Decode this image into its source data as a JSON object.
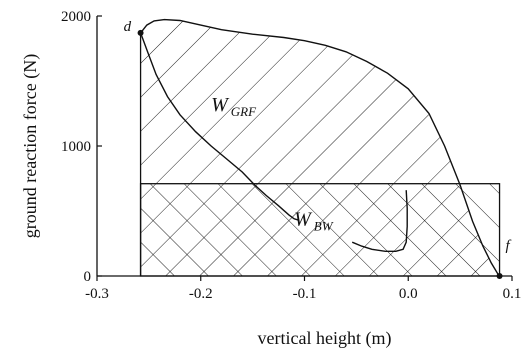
{
  "chart_data": {
    "type": "line",
    "xlabel": "vertical height (m)",
    "ylabel": "ground reaction force (N)",
    "xlim": [
      -0.3,
      0.1
    ],
    "ylim": [
      0,
      2000
    ],
    "x_ticks": [
      "-0.3",
      "-0.2",
      "-0.1",
      "0.0",
      "0.1"
    ],
    "y_ticks": [
      "0",
      "1000",
      "2000"
    ],
    "grid": false,
    "series": [
      {
        "name": "",
        "points": [
          [
            -0.258,
            1870
          ],
          [
            -0.252,
            1930
          ],
          [
            -0.245,
            1962
          ],
          [
            -0.235,
            1972
          ],
          [
            -0.22,
            1965
          ],
          [
            -0.2,
            1930
          ],
          [
            -0.18,
            1895
          ],
          [
            -0.15,
            1860
          ],
          [
            -0.12,
            1835
          ],
          [
            -0.1,
            1810
          ],
          [
            -0.08,
            1775
          ],
          [
            -0.06,
            1725
          ],
          [
            -0.04,
            1650
          ],
          [
            -0.02,
            1560
          ],
          [
            0.0,
            1440
          ],
          [
            0.02,
            1250
          ],
          [
            0.035,
            1000
          ],
          [
            0.05,
            700
          ],
          [
            0.062,
            420
          ],
          [
            0.072,
            230
          ],
          [
            0.08,
            100
          ],
          [
            0.086,
            20
          ],
          [
            0.088,
            0
          ]
        ]
      },
      {
        "name": "",
        "points": [
          [
            -0.258,
            1870
          ],
          [
            -0.251,
            1720
          ],
          [
            -0.243,
            1550
          ],
          [
            -0.232,
            1380
          ],
          [
            -0.22,
            1240
          ],
          [
            -0.205,
            1110
          ],
          [
            -0.19,
            1000
          ],
          [
            -0.175,
            900
          ],
          [
            -0.16,
            800
          ],
          [
            -0.148,
            700
          ],
          [
            -0.137,
            620
          ],
          [
            -0.125,
            540
          ],
          [
            -0.115,
            470
          ],
          [
            -0.11,
            440
          ],
          [
            -0.106,
            430
          ]
        ]
      },
      {
        "name": "",
        "points": [
          [
            -0.054,
            260
          ],
          [
            -0.045,
            230
          ],
          [
            -0.035,
            205
          ],
          [
            -0.022,
            190
          ],
          [
            -0.012,
            190
          ],
          [
            -0.005,
            205
          ],
          [
            -0.002,
            260
          ],
          [
            -0.001,
            380
          ],
          [
            -0.001,
            520
          ],
          [
            -0.002,
            660
          ]
        ]
      }
    ],
    "regions": [
      {
        "label_main": "W",
        "label_sub": "GRF",
        "pattern": "diagonal"
      },
      {
        "label_main": "W",
        "label_sub": "BW",
        "pattern": "crosshatch",
        "level": 710
      }
    ],
    "annotations": [
      {
        "text": "d",
        "x": -0.258,
        "y": 1870
      },
      {
        "text": "f",
        "x": 0.088,
        "y": 0
      }
    ]
  }
}
